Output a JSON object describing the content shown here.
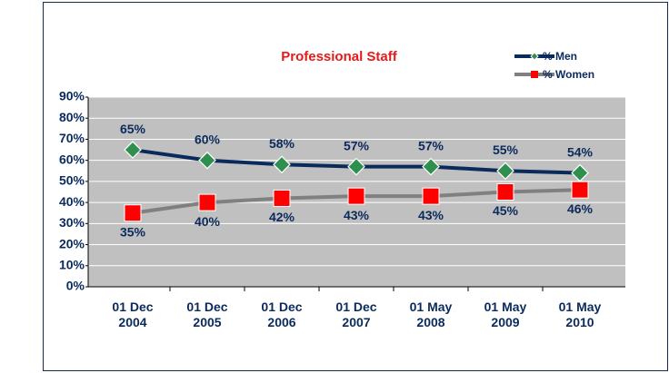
{
  "chart_data": {
    "type": "line",
    "title": "Professional Staff",
    "categories": [
      "01 Dec 2004",
      "01 Dec 2005",
      "01 Dec 2006",
      "01 Dec 2007",
      "01 May 2008",
      "01 May 2009",
      "01 May 2010"
    ],
    "series": [
      {
        "name": "% Men",
        "color": "#0b2a5c",
        "marker_color": "#2f8f4f",
        "marker": "diamond",
        "values": [
          65,
          60,
          58,
          57,
          57,
          55,
          54
        ],
        "value_labels": [
          "65%",
          "60%",
          "58%",
          "57%",
          "57%",
          "55%",
          "54%"
        ]
      },
      {
        "name": "% Women",
        "color": "#808080",
        "marker_color": "#ff0000",
        "marker": "square",
        "values": [
          35,
          40,
          42,
          43,
          43,
          45,
          46
        ],
        "value_labels": [
          "35%",
          "40%",
          "42%",
          "43%",
          "43%",
          "45%",
          "46%"
        ]
      }
    ],
    "ylim": [
      0,
      90
    ],
    "yticks": [
      {
        "value": 0,
        "label": "0%"
      },
      {
        "value": 10,
        "label": "10%"
      },
      {
        "value": 20,
        "label": "20%"
      },
      {
        "value": 30,
        "label": "30%"
      },
      {
        "value": 40,
        "label": "40%"
      },
      {
        "value": 50,
        "label": "50%"
      },
      {
        "value": 60,
        "label": "60%"
      },
      {
        "value": 70,
        "label": "70%"
      },
      {
        "value": 80,
        "label": "80%"
      },
      {
        "value": 90,
        "label": "90%"
      }
    ],
    "grid": true,
    "legend": "top-right",
    "plot_background": "#c0c0c0"
  }
}
